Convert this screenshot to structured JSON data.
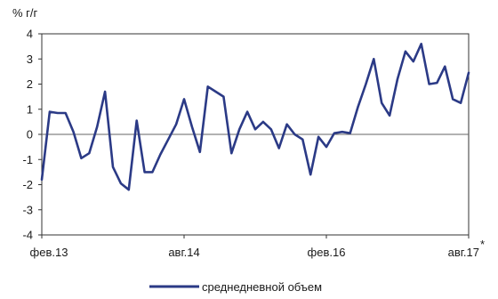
{
  "chart_data": {
    "type": "line",
    "ylabel": "% г/г",
    "ylim": [
      -4,
      4
    ],
    "y_ticks": [
      "4",
      "3",
      "2",
      "1",
      "0",
      "-1",
      "-2",
      "-3",
      "-4"
    ],
    "x_tick_labels": [
      "фев.13",
      "авг.14",
      "фев.16",
      "авг.17"
    ],
    "x_tick_positions": [
      0,
      18,
      36,
      54
    ],
    "footnote_marker": "*",
    "grid": false,
    "zero_line": true,
    "legend_position": "bottom-center",
    "series": [
      {
        "name": "среднедневной объем",
        "color": "#2b3a86",
        "values": [
          -1.8,
          0.9,
          0.85,
          0.85,
          0.1,
          -0.95,
          -0.75,
          0.3,
          1.7,
          -1.3,
          -1.95,
          -2.2,
          0.55,
          -1.5,
          -1.5,
          -0.8,
          -0.2,
          0.4,
          1.4,
          0.3,
          -0.7,
          1.9,
          1.7,
          1.5,
          -0.75,
          0.2,
          0.9,
          0.2,
          0.5,
          0.2,
          -0.55,
          0.4,
          0.0,
          -0.2,
          -1.6,
          -0.1,
          -0.5,
          0.05,
          0.1,
          0.05,
          1.1,
          2.0,
          3.0,
          1.25,
          0.75,
          2.2,
          3.3,
          2.9,
          3.6,
          2.0,
          2.05,
          2.7,
          1.4,
          1.25,
          2.45
        ]
      }
    ]
  }
}
